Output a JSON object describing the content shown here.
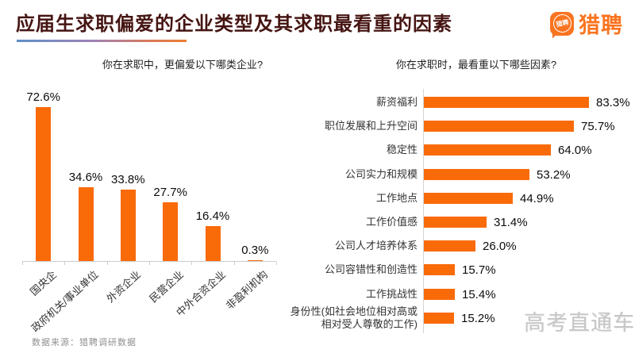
{
  "header": {
    "title": "应届生求职偏爱的企业类型及其求职最看重的因素",
    "logo": {
      "text": "猎聘",
      "bubble_text": "猎聘"
    }
  },
  "source_note": "数据来源：猎聘调研数据",
  "watermark": "高考直通车",
  "colors": {
    "bar_orange": "#F96A09",
    "brand_orange": "#FA7420",
    "title_dark_red": "#451512",
    "underline_gradient_start": "#5E8FC8",
    "underline_gradient_end": "#ED7D31",
    "axis_gray": "#cccccc",
    "watermark_gray": "#c6c6c6"
  },
  "chart_data": [
    {
      "type": "bar",
      "orientation": "vertical",
      "title": "你在求职中，更偏爱以下哪类企业?",
      "categories": [
        "国央企",
        "政府机关/事业单位",
        "外资企业",
        "民营企业",
        "中外合资企业",
        "非盈利机构"
      ],
      "values": [
        72.6,
        34.6,
        33.8,
        27.7,
        16.4,
        0.3
      ],
      "value_labels": [
        "72.6%",
        "34.6%",
        "33.8%",
        "27.7%",
        "16.4%",
        "0.3%"
      ],
      "ylim": [
        0,
        80
      ],
      "grid": false,
      "legend": "none"
    },
    {
      "type": "bar",
      "orientation": "horizontal",
      "title": "你在求职时，最看重以下哪些因素?",
      "categories": [
        "薪资福利",
        "职位发展和上升空间",
        "稳定性",
        "公司实力和规模",
        "工作地点",
        "工作价值感",
        "公司人才培养体系",
        "公司容错性和创造性",
        "工作挑战性",
        "身份性(如社会地位相对高或相对受人尊敬的工作)"
      ],
      "values": [
        83.3,
        75.7,
        64.0,
        53.2,
        44.9,
        31.4,
        26.0,
        15.7,
        15.4,
        15.2
      ],
      "value_labels": [
        "83.3%",
        "75.7%",
        "64.0%",
        "53.2%",
        "44.9%",
        "31.4%",
        "26.0%",
        "15.7%",
        "15.4%",
        "15.2%"
      ],
      "xlim": [
        0,
        100
      ],
      "grid": false,
      "legend": "none"
    }
  ]
}
